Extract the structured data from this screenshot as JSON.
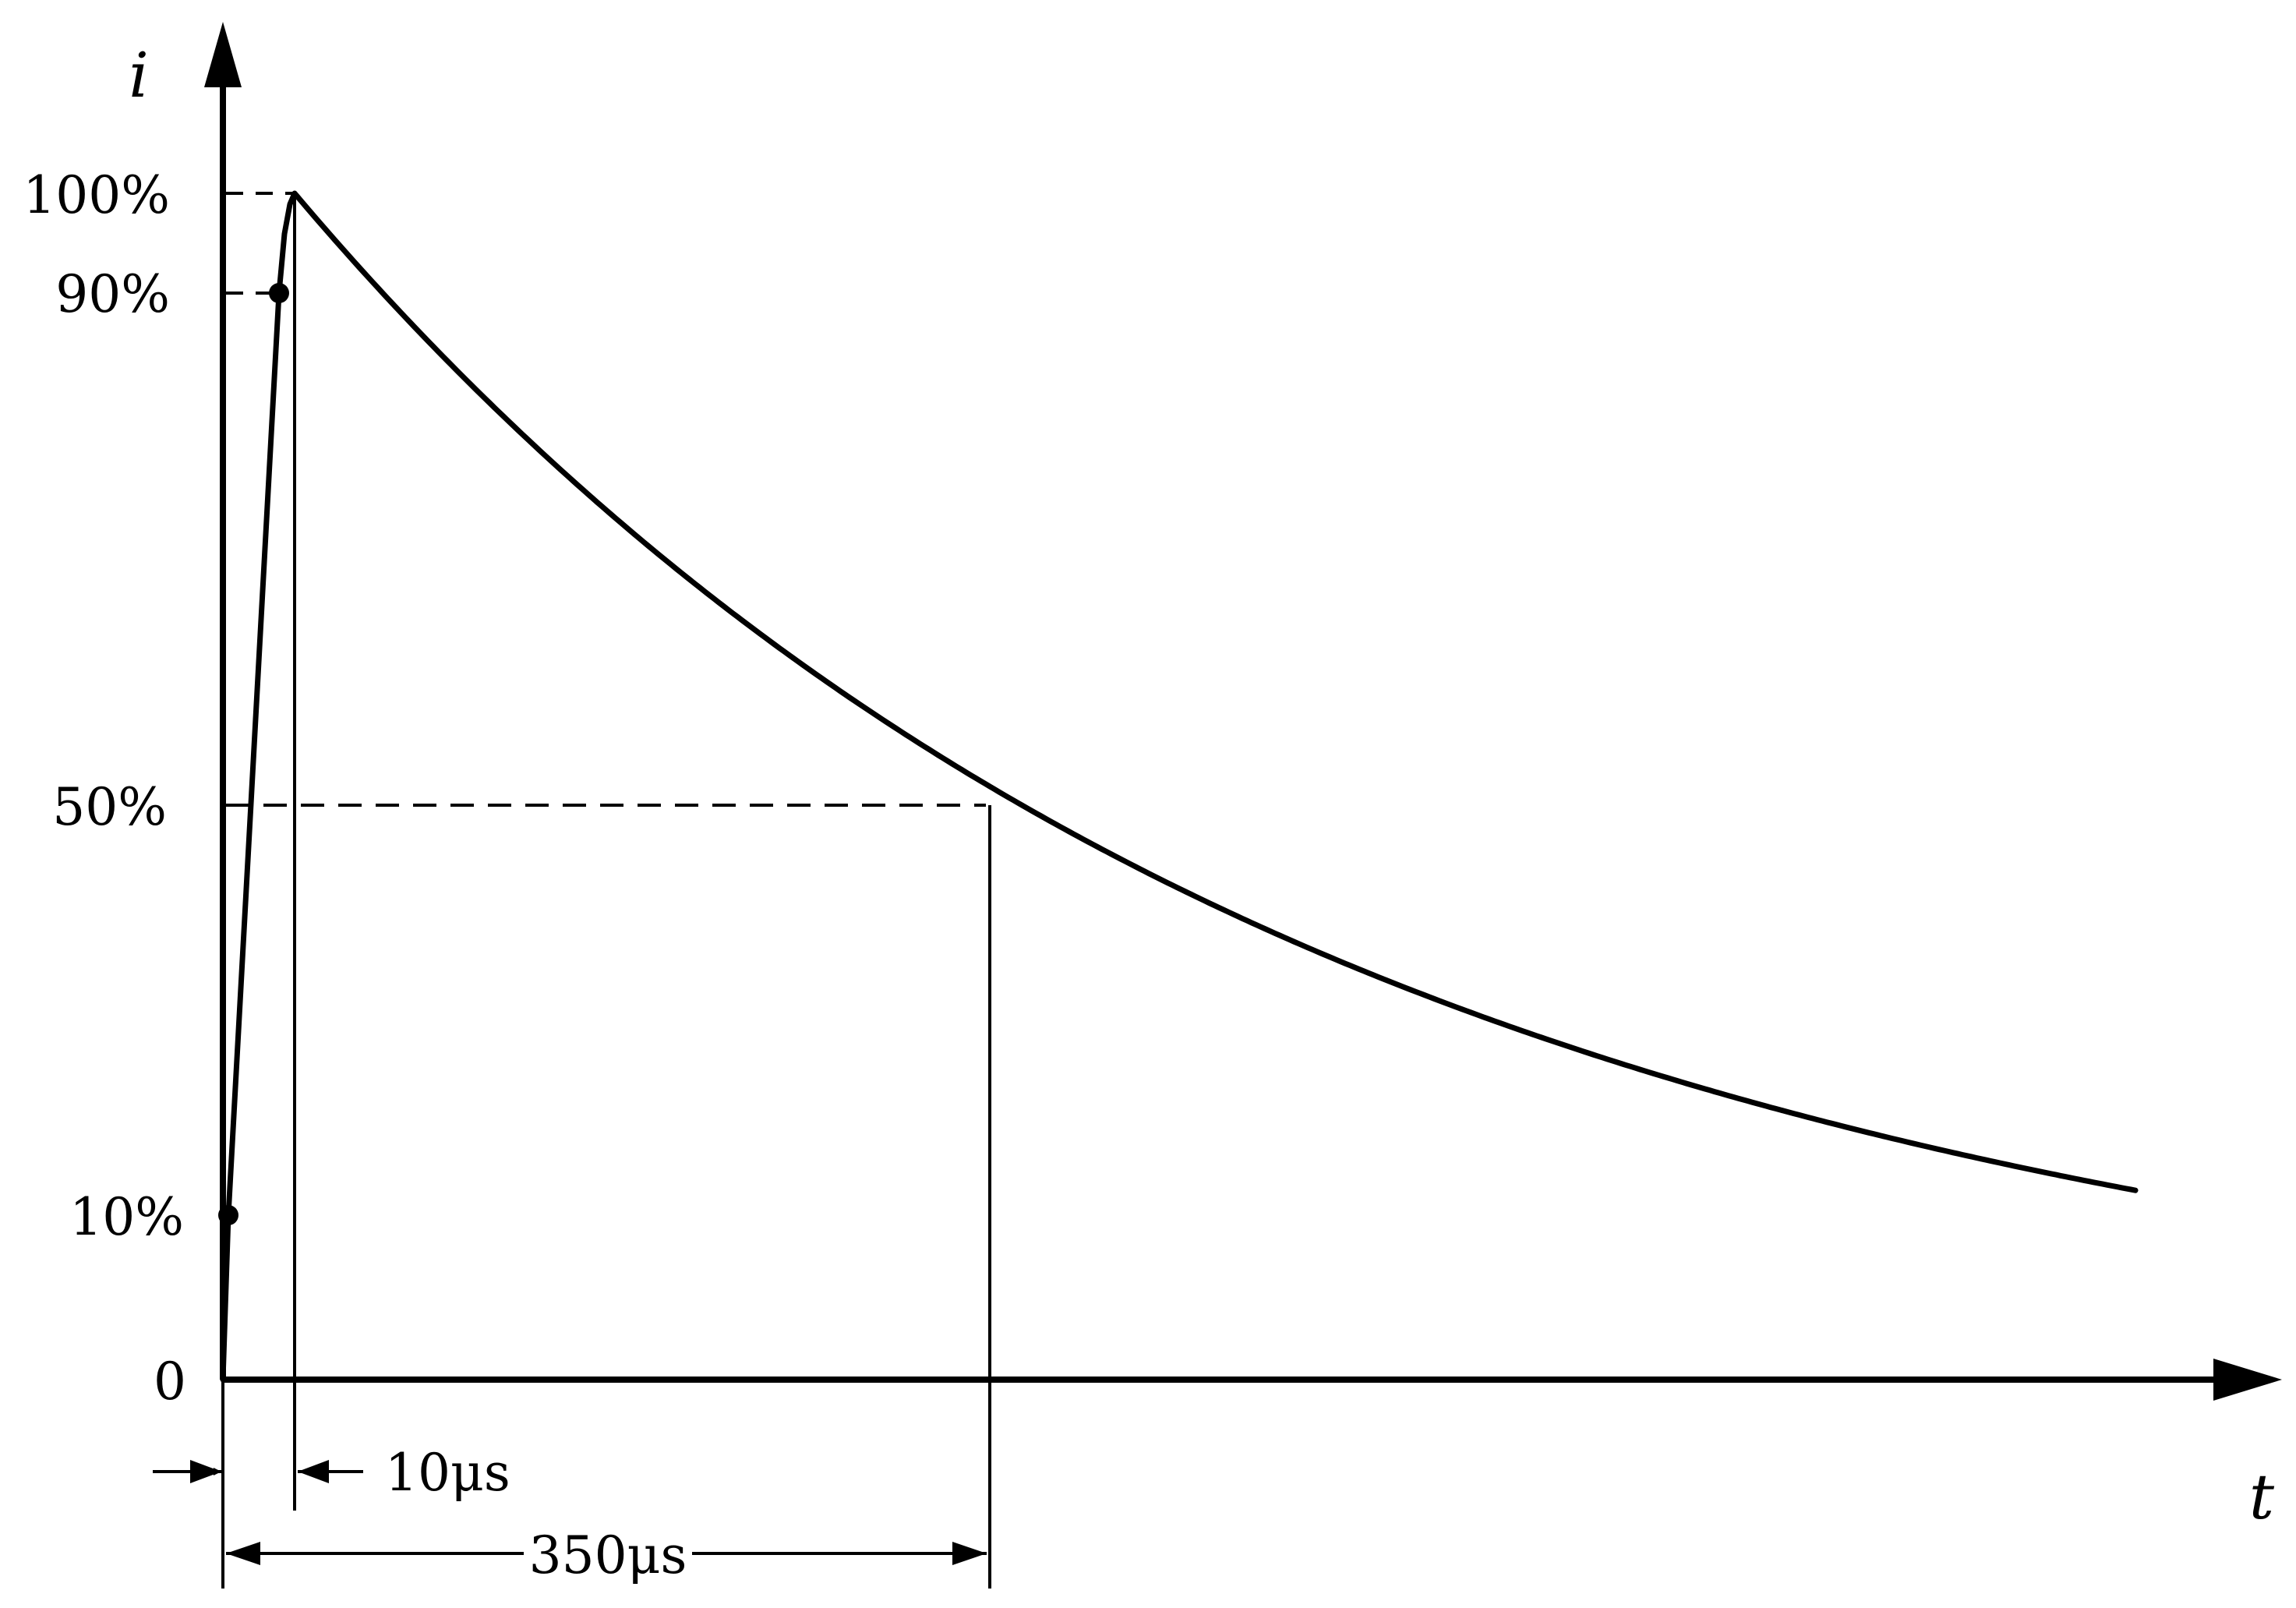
{
  "diagram": {
    "axes": {
      "y_label": "i",
      "x_label": "t",
      "origin_label": "0"
    },
    "levels": [
      {
        "label": "100%",
        "value": 100
      },
      {
        "label": "90%",
        "value": 90
      },
      {
        "label": "50%",
        "value": 50
      },
      {
        "label": "10%",
        "value": 10
      }
    ],
    "dimensions": {
      "rise_time": {
        "label": "10μs",
        "value_us": 10
      },
      "half_value_time": {
        "label": "350μs",
        "value_us": 350
      }
    },
    "colors": {
      "stroke": "#000000",
      "background": "#ffffff"
    }
  }
}
